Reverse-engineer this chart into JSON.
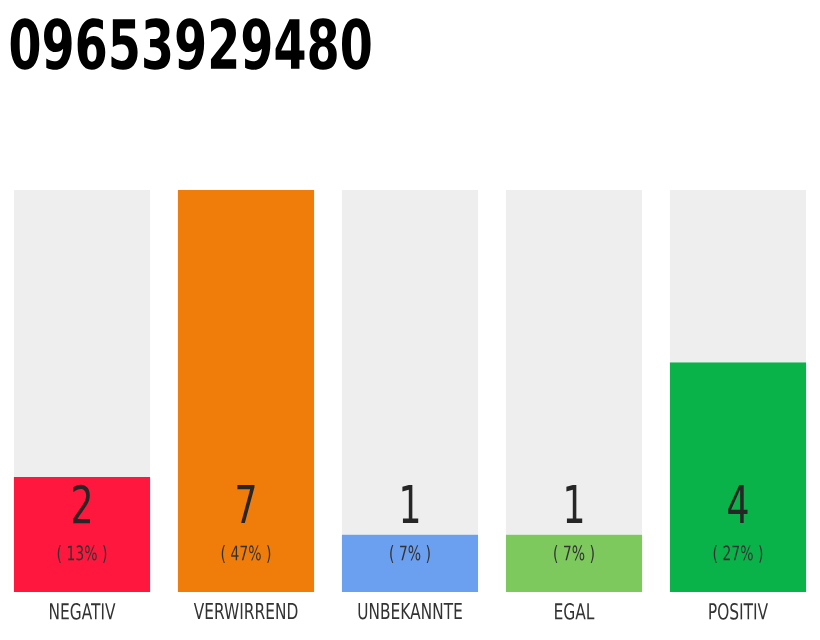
{
  "chart_data": {
    "type": "bar",
    "title": "09653929480",
    "stacked": true,
    "data_labels": false,
    "categories": [
      "NEGATIV",
      "VERWIRREND",
      "UNBEKANNTE",
      "EGAL",
      "POSITIV"
    ],
    "series": [
      {
        "colors": [
          "#ff173d",
          "#f07d0a",
          "#6b9ff0",
          "#7dc95e",
          "#0ab349"
        ],
        "values": [
          2,
          7,
          1,
          1,
          4
        ],
        "value_labels": [
          "2",
          "7",
          "1",
          "1",
          "4"
        ]
      },
      {
        "color": "#eeeeee",
        "values": [
          5,
          0,
          6,
          6,
          3
        ]
      }
    ],
    "annotations": [
      "( 13% )",
      "( 47% )",
      "( 7% )",
      "( 7% )",
      "( 27% )"
    ]
  }
}
